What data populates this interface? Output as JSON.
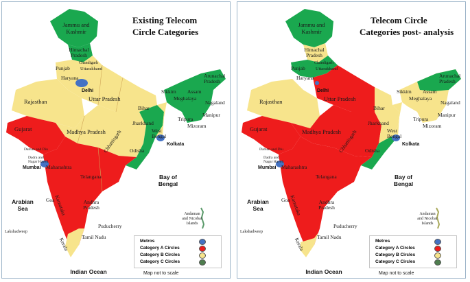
{
  "colors": {
    "metro": "#4472c4",
    "cat_a": "#ee1c1c",
    "cat_b": "#f7e48c",
    "cat_c": "#1aa84f",
    "sea_text": "#111111"
  },
  "left": {
    "title_line1": "Existing Telecom",
    "title_line2": "Circle Categories",
    "labels": {
      "jk": "Jammu and Kashmir",
      "hp": "Himachal Pradesh",
      "punjab": "Punjab",
      "chandigarh": "Chandigarh",
      "uttarakhand": "Uttarakhand",
      "haryana": "Haryana",
      "delhi": "Delhi",
      "rajasthan": "Rajasthan",
      "up": "Uttar Pradesh",
      "sikkim": "Sikkim",
      "arunachal": "Arunachal Pradesh",
      "assam": "Assam",
      "meghalaya": "Meghalaya",
      "nagaland": "Nagaland",
      "manipur": "Manipur",
      "tripura": "Tripura",
      "mizoram": "Mizoram",
      "bihar": "Bihar",
      "gujarat": "Gujarat",
      "mp": "Madhya Pradesh",
      "jharkhand": "Jharkhand",
      "wb": "West Bengal",
      "chhattisgarh": "Chhattisgarh",
      "daman": "Daman and Diu",
      "dadra": "Dadra and Nagar Haveli",
      "odisha": "Odisha",
      "kolkata": "Kolkata",
      "mumbai": "Mumbai",
      "maharashtra": "Maharashtra",
      "telangana": "Telangana",
      "bay": "Bay of Bengal",
      "arabian": "Arabian Sea",
      "goa": "Goa",
      "karnataka": "Karnataka",
      "ap": "Andhra Pradesh",
      "andaman": "Andaman and Nicobar Islands",
      "lakshadweep": "Lakshadweep",
      "puducherry": "Puducherry",
      "tamilnadu": "Tamil Nadu",
      "kerala": "Kerala",
      "ocean": "Indian Ocean",
      "scale_note": "Map not to scale"
    }
  },
  "right": {
    "title_line1": "Telecom Circle",
    "title_line2": "Categories post- analysis"
  },
  "legend": {
    "metros": "Metros",
    "cat_a": "Category A Circles",
    "cat_b": "Category B Circles",
    "cat_c": "Category C Circles"
  }
}
